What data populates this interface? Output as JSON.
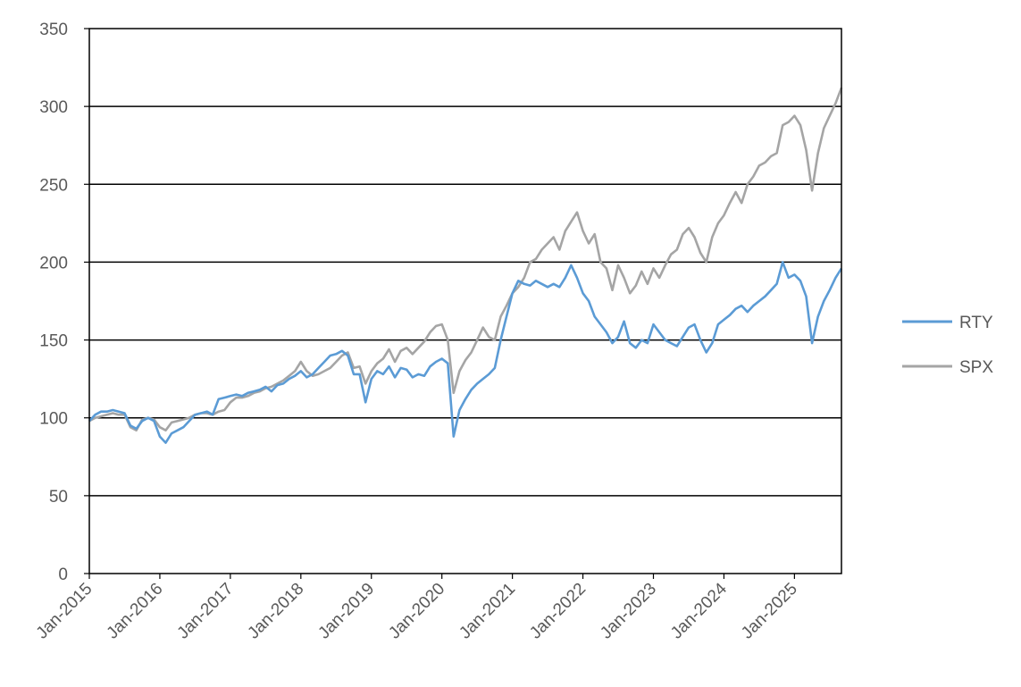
{
  "chart_data": {
    "type": "line",
    "title": "",
    "xlabel": "",
    "ylabel": "",
    "ylim": [
      0,
      350
    ],
    "yticks": [
      0,
      50,
      100,
      150,
      200,
      250,
      300,
      350
    ],
    "xlim": [
      "2015-01",
      "2025-09"
    ],
    "xticks": [
      "Jan-2015",
      "Jan-2016",
      "Jan-2017",
      "Jan-2018",
      "Jan-2019",
      "Jan-2020",
      "Jan-2021",
      "Jan-2022",
      "Jan-2023",
      "Jan-2024",
      "Jan-2025"
    ],
    "grid": "horizontal",
    "legend": "right",
    "x": [
      "2015-01",
      "2015-02",
      "2015-03",
      "2015-04",
      "2015-05",
      "2015-06",
      "2015-07",
      "2015-08",
      "2015-09",
      "2015-10",
      "2015-11",
      "2015-12",
      "2016-01",
      "2016-02",
      "2016-03",
      "2016-04",
      "2016-05",
      "2016-06",
      "2016-07",
      "2016-08",
      "2016-09",
      "2016-10",
      "2016-11",
      "2016-12",
      "2017-01",
      "2017-02",
      "2017-03",
      "2017-04",
      "2017-05",
      "2017-06",
      "2017-07",
      "2017-08",
      "2017-09",
      "2017-10",
      "2017-11",
      "2017-12",
      "2018-01",
      "2018-02",
      "2018-03",
      "2018-04",
      "2018-05",
      "2018-06",
      "2018-07",
      "2018-08",
      "2018-09",
      "2018-10",
      "2018-11",
      "2018-12",
      "2019-01",
      "2019-02",
      "2019-03",
      "2019-04",
      "2019-05",
      "2019-06",
      "2019-07",
      "2019-08",
      "2019-09",
      "2019-10",
      "2019-11",
      "2019-12",
      "2020-01",
      "2020-02",
      "2020-03",
      "2020-04",
      "2020-05",
      "2020-06",
      "2020-07",
      "2020-08",
      "2020-09",
      "2020-10",
      "2020-11",
      "2020-12",
      "2021-01",
      "2021-02",
      "2021-03",
      "2021-04",
      "2021-05",
      "2021-06",
      "2021-07",
      "2021-08",
      "2021-09",
      "2021-10",
      "2021-11",
      "2021-12",
      "2022-01",
      "2022-02",
      "2022-03",
      "2022-04",
      "2022-05",
      "2022-06",
      "2022-07",
      "2022-08",
      "2022-09",
      "2022-10",
      "2022-11",
      "2022-12",
      "2023-01",
      "2023-02",
      "2023-03",
      "2023-04",
      "2023-05",
      "2023-06",
      "2023-07",
      "2023-08",
      "2023-09",
      "2023-10",
      "2023-11",
      "2023-12",
      "2024-01",
      "2024-02",
      "2024-03",
      "2024-04",
      "2024-05",
      "2024-06",
      "2024-07",
      "2024-08",
      "2024-09",
      "2024-10",
      "2024-11",
      "2024-12",
      "2025-01",
      "2025-02",
      "2025-03",
      "2025-04",
      "2025-05",
      "2025-06",
      "2025-07",
      "2025-08",
      "2025-09"
    ],
    "series": [
      {
        "name": "RTY",
        "color": "#5b9bd5",
        "values": [
          98,
          102,
          104,
          104,
          105,
          104,
          103,
          95,
          93,
          98,
          100,
          98,
          88,
          84,
          90,
          92,
          94,
          98,
          102,
          103,
          104,
          102,
          112,
          113,
          114,
          115,
          114,
          116,
          117,
          118,
          120,
          117,
          121,
          122,
          125,
          127,
          130,
          126,
          128,
          132,
          136,
          140,
          141,
          143,
          140,
          128,
          128,
          110,
          125,
          130,
          128,
          133,
          126,
          132,
          131,
          126,
          128,
          127,
          133,
          136,
          138,
          135,
          88,
          105,
          112,
          118,
          122,
          125,
          128,
          132,
          150,
          165,
          180,
          188,
          186,
          185,
          188,
          186,
          184,
          186,
          184,
          190,
          198,
          190,
          180,
          175,
          165,
          160,
          155,
          148,
          152,
          162,
          148,
          145,
          150,
          148,
          160,
          155,
          150,
          148,
          146,
          152,
          158,
          160,
          150,
          142,
          148,
          160,
          163,
          166,
          170,
          172,
          168,
          172,
          175,
          178,
          182,
          186,
          200,
          190,
          192,
          188,
          178,
          148,
          165,
          175,
          182,
          190,
          196
        ]
      },
      {
        "name": "SPX",
        "color": "#a5a5a5",
        "values": [
          98,
          100,
          101,
          102,
          103,
          102,
          102,
          94,
          92,
          99,
          100,
          99,
          94,
          92,
          97,
          98,
          99,
          100,
          102,
          103,
          103,
          102,
          104,
          105,
          110,
          113,
          113,
          114,
          116,
          117,
          119,
          120,
          122,
          124,
          127,
          130,
          136,
          130,
          127,
          128,
          130,
          132,
          136,
          140,
          142,
          132,
          133,
          122,
          130,
          135,
          138,
          144,
          136,
          143,
          145,
          141,
          145,
          149,
          155,
          159,
          160,
          150,
          116,
          130,
          137,
          142,
          150,
          158,
          152,
          150,
          165,
          172,
          180,
          184,
          190,
          200,
          202,
          208,
          212,
          216,
          208,
          220,
          226,
          232,
          220,
          212,
          218,
          200,
          196,
          182,
          198,
          190,
          180,
          185,
          194,
          186,
          196,
          190,
          198,
          205,
          208,
          218,
          222,
          216,
          206,
          200,
          216,
          225,
          230,
          238,
          245,
          238,
          250,
          255,
          262,
          264,
          268,
          270,
          288,
          290,
          294,
          288,
          272,
          246,
          270,
          286,
          294,
          302,
          312
        ]
      }
    ]
  }
}
